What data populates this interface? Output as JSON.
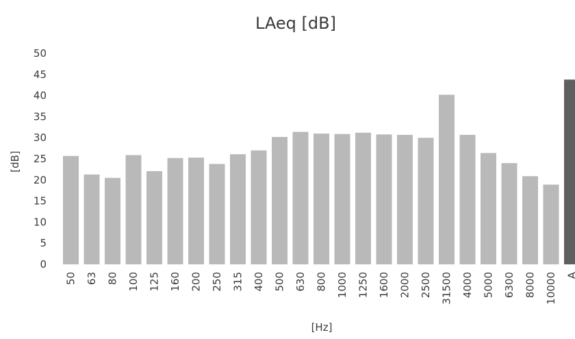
{
  "chart_data": {
    "type": "bar",
    "title": "LAeq [dB]",
    "xlabel": "[Hz]",
    "ylabel": "[dB]",
    "ylim": [
      0,
      50
    ],
    "yticks": [
      0,
      5,
      10,
      15,
      20,
      25,
      30,
      35,
      40,
      45,
      50
    ],
    "grid": false,
    "categories": [
      "50",
      "63",
      "80",
      "100",
      "125",
      "160",
      "200",
      "250",
      "315",
      "400",
      "500",
      "630",
      "800",
      "1000",
      "1250",
      "1600",
      "2000",
      "2500",
      "31500",
      "4000",
      "5000",
      "6300",
      "8000",
      "10000",
      "A"
    ],
    "values": [
      25.7,
      21.3,
      20.5,
      25.9,
      22.1,
      25.2,
      25.3,
      23.8,
      26.1,
      27.0,
      30.2,
      31.4,
      31.0,
      30.9,
      31.2,
      30.8,
      30.7,
      30.0,
      40.2,
      30.7,
      26.4,
      24.0,
      20.9,
      18.9,
      43.8
    ],
    "colors": {
      "bar": "#b9b9b9",
      "highlight_bar": "#5f5f5f"
    },
    "highlight_category": "A"
  }
}
